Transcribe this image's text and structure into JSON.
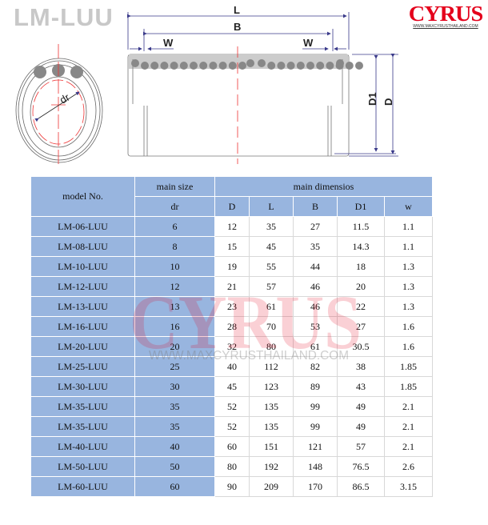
{
  "header": {
    "title": "LM-LUU"
  },
  "logo": {
    "word": "CYRUS",
    "url": "WWW.MAXCYRUSTHAILAND.COM",
    "color": "#e4001b"
  },
  "drawing": {
    "labels": {
      "L": "L",
      "B": "B",
      "W_left": "W",
      "W_right": "W",
      "D1": "D1",
      "D": "D",
      "dr": "dr"
    }
  },
  "table": {
    "header_color": "#98b5df",
    "model_header": "model No.",
    "main_size_header": "main size",
    "main_dimensions_header": "main dimensios",
    "sub_headers": [
      "dr",
      "D",
      "L",
      "B",
      "D1",
      "w"
    ],
    "rows": [
      [
        "LM-06-LUU",
        "6",
        "12",
        "35",
        "27",
        "11.5",
        "1.1"
      ],
      [
        "LM-08-LUU",
        "8",
        "15",
        "45",
        "35",
        "14.3",
        "1.1"
      ],
      [
        "LM-10-LUU",
        "10",
        "19",
        "55",
        "44",
        "18",
        "1.3"
      ],
      [
        "LM-12-LUU",
        "12",
        "21",
        "57",
        "46",
        "20",
        "1.3"
      ],
      [
        "LM-13-LUU",
        "13",
        "23",
        "61",
        "46",
        "22",
        "1.3"
      ],
      [
        "LM-16-LUU",
        "16",
        "28",
        "70",
        "53",
        "27",
        "1.6"
      ],
      [
        "LM-20-LUU",
        "20",
        "32",
        "80",
        "61",
        "30.5",
        "1.6"
      ],
      [
        "LM-25-LUU",
        "25",
        "40",
        "112",
        "82",
        "38",
        "1.85"
      ],
      [
        "LM-30-LUU",
        "30",
        "45",
        "123",
        "89",
        "43",
        "1.85"
      ],
      [
        "LM-35-LUU",
        "35",
        "52",
        "135",
        "99",
        "49",
        "2.1"
      ],
      [
        "LM-35-LUU",
        "35",
        "52",
        "135",
        "99",
        "49",
        "2.1"
      ],
      [
        "LM-40-LUU",
        "40",
        "60",
        "151",
        "121",
        "57",
        "2.1"
      ],
      [
        "LM-50-LUU",
        "50",
        "80",
        "192",
        "148",
        "76.5",
        "2.6"
      ],
      [
        "LM-60-LUU",
        "60",
        "90",
        "209",
        "170",
        "86.5",
        "3.15"
      ]
    ]
  },
  "watermark": {
    "word": "CYRUS",
    "url": "WWW.MAXCYRUSTHAILAND.COM"
  }
}
